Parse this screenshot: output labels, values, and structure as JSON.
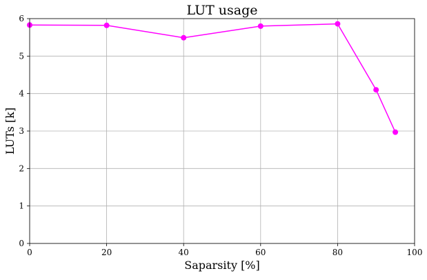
{
  "chart_data": {
    "type": "line",
    "title": "LUT usage",
    "xlabel": "Saparsity [%]",
    "ylabel": "LUTs [k]",
    "xlim": [
      0,
      100
    ],
    "ylim": [
      0,
      6
    ],
    "xticks": [
      0,
      20,
      40,
      60,
      80,
      100
    ],
    "yticks": [
      0,
      1,
      2,
      3,
      4,
      5,
      6
    ],
    "grid": true,
    "series": [
      {
        "color": "#ff00ff",
        "marker": "circle",
        "x": [
          0,
          20,
          40,
          60,
          80,
          90,
          95
        ],
        "y": [
          5.83,
          5.82,
          5.49,
          5.8,
          5.86,
          4.1,
          2.97
        ]
      }
    ]
  }
}
